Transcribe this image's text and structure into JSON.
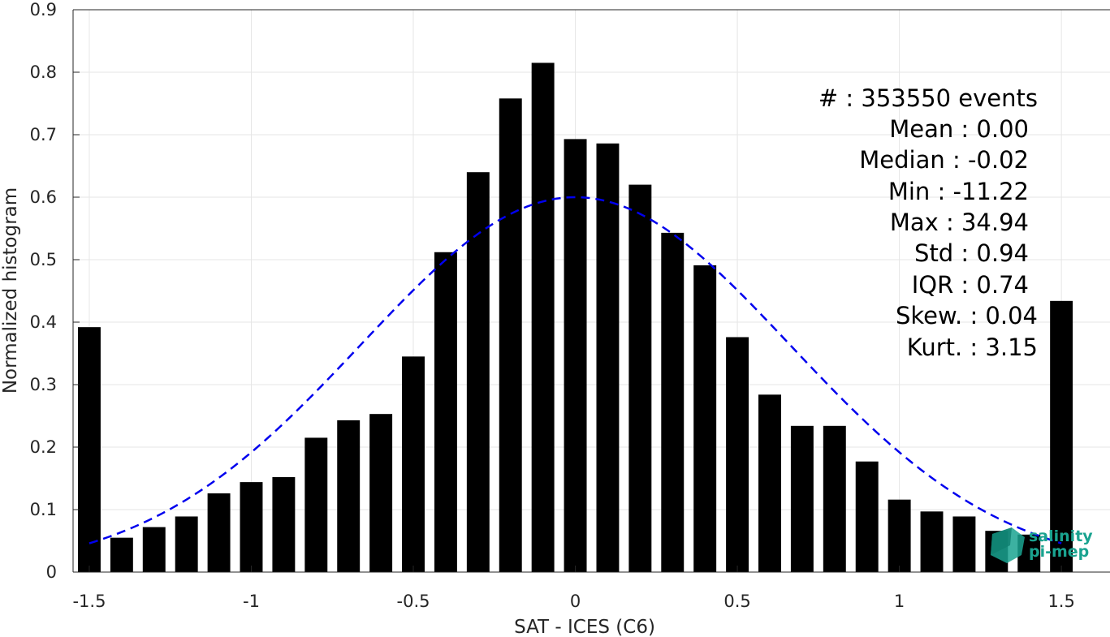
{
  "chart_data": {
    "type": "bar",
    "xlabel": "SAT - ICES (C6)",
    "ylabel": "Normalized histogram",
    "xlim": [
      -1.55,
      1.65
    ],
    "ylim": [
      0,
      0.9
    ],
    "grid": true,
    "x_ticks": [
      -1.5,
      -1,
      -0.5,
      0,
      0.5,
      1,
      1.5
    ],
    "x_tick_labels": [
      "-1.5",
      "-1",
      "-0.5",
      "0",
      "0.5",
      "1",
      "1.5"
    ],
    "y_ticks": [
      0,
      0.1,
      0.2,
      0.3,
      0.4,
      0.5,
      0.6,
      0.7,
      0.8,
      0.9
    ],
    "y_tick_labels": [
      "0",
      "0.1",
      "0.2",
      "0.3",
      "0.4",
      "0.5",
      "0.6",
      "0.7",
      "0.8",
      "0.9"
    ],
    "bin_width": 0.1,
    "bar_color": "#000000",
    "x": [
      -1.5,
      -1.4,
      -1.3,
      -1.2,
      -1.1,
      -1.0,
      -0.9,
      -0.8,
      -0.7,
      -0.6,
      -0.5,
      -0.4,
      -0.3,
      -0.2,
      -0.1,
      0.0,
      0.1,
      0.2,
      0.3,
      0.4,
      0.5,
      0.6,
      0.7,
      0.8,
      0.9,
      1.0,
      1.1,
      1.2,
      1.3,
      1.4,
      1.5
    ],
    "values": [
      0.392,
      0.055,
      0.072,
      0.089,
      0.126,
      0.144,
      0.152,
      0.215,
      0.243,
      0.253,
      0.345,
      0.512,
      0.64,
      0.758,
      0.815,
      0.693,
      0.686,
      0.62,
      0.543,
      0.491,
      0.376,
      0.284,
      0.234,
      0.234,
      0.177,
      0.116,
      0.097,
      0.089,
      0.066,
      0.06,
      0.434
    ],
    "fit_curve": {
      "style": "dashed",
      "color": "#0000ee",
      "mean": 0.0,
      "std": 0.662,
      "peak": 0.6,
      "x_range": [
        -1.5,
        1.5
      ]
    },
    "stats": [
      {
        "label": "#  : 353550 events"
      },
      {
        "label": "Mean : 0.00"
      },
      {
        "label": "Median : -0.02"
      },
      {
        "label": "Min : -11.22"
      },
      {
        "label": "Max : 34.94"
      },
      {
        "label": "Std : 0.94"
      },
      {
        "label": "IQR : 0.74"
      },
      {
        "label": "Skew. : 0.04"
      },
      {
        "label": "Kurt. : 3.15"
      }
    ]
  },
  "logo": {
    "line1": "salinity",
    "line2": "pi-mep",
    "color": "#1aa390"
  }
}
